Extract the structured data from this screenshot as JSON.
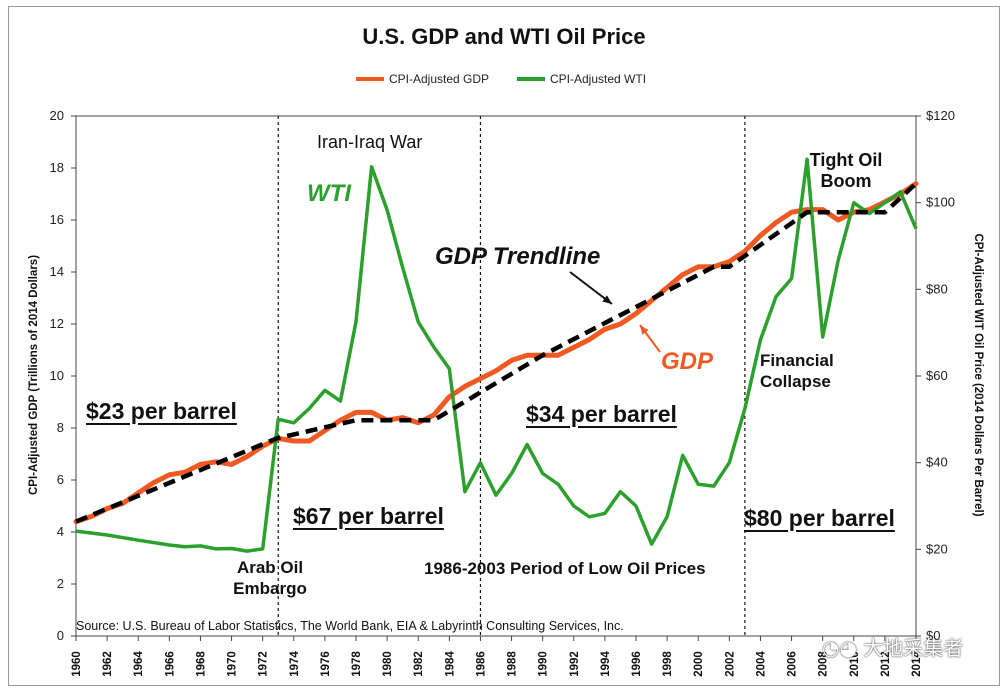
{
  "chart_data": {
    "type": "line",
    "title": "U.S. GDP and WTI Oil Price",
    "ylabel_left": "CPI-Adjusted GDP (Trillions of 2014 Dollars)",
    "ylabel_right": "CPI-Adjusted WIT Oil Price (2014 Dollars Per Barrel)",
    "ylim_left": [
      0,
      20
    ],
    "ylim_right": [
      0,
      120
    ],
    "y_ticks_left": [
      "0",
      "2",
      "4",
      "6",
      "8",
      "10",
      "12",
      "14",
      "16",
      "18",
      "20"
    ],
    "y_ticks_right": [
      "$0",
      "$20",
      "$40",
      "$60",
      "$80",
      "$100",
      "$120"
    ],
    "xlim": [
      1960,
      2014
    ],
    "x_ticks": [
      "1960",
      "1962",
      "1964",
      "1966",
      "1968",
      "1970",
      "1972",
      "1974",
      "1976",
      "1978",
      "1980",
      "1982",
      "1984",
      "1986",
      "1988",
      "1990",
      "1992",
      "1994",
      "1996",
      "1998",
      "2000",
      "2002",
      "2004",
      "2006",
      "2008",
      "2010",
      "2012",
      "2014"
    ],
    "legend_position": "top",
    "series": [
      {
        "name": "CPI-Adjusted GDP",
        "axis": "left",
        "color": "#f05a22",
        "x": [
          1960,
          1961,
          1962,
          1963,
          1964,
          1965,
          1966,
          1967,
          1968,
          1969,
          1970,
          1971,
          1972,
          1973,
          1974,
          1975,
          1976,
          1977,
          1978,
          1979,
          1980,
          1981,
          1982,
          1983,
          1984,
          1985,
          1986,
          1987,
          1988,
          1989,
          1990,
          1991,
          1992,
          1993,
          1994,
          1995,
          1996,
          1997,
          1998,
          1999,
          2000,
          2001,
          2002,
          2003,
          2004,
          2005,
          2006,
          2007,
          2008,
          2009,
          2010,
          2011,
          2012,
          2013,
          2014
        ],
        "y": [
          4.4,
          4.6,
          4.9,
          5.1,
          5.5,
          5.9,
          6.2,
          6.3,
          6.6,
          6.7,
          6.6,
          6.9,
          7.3,
          7.6,
          7.5,
          7.5,
          7.9,
          8.3,
          8.6,
          8.6,
          8.3,
          8.4,
          8.2,
          8.5,
          9.2,
          9.6,
          9.9,
          10.2,
          10.6,
          10.8,
          10.8,
          10.8,
          11.1,
          11.4,
          11.8,
          12.0,
          12.4,
          12.9,
          13.4,
          13.9,
          14.2,
          14.2,
          14.4,
          14.8,
          15.4,
          15.9,
          16.3,
          16.4,
          16.4,
          16.0,
          16.3,
          16.4,
          16.7,
          17.0,
          17.4
        ]
      },
      {
        "name": "CPI-Adjusted WTI",
        "axis": "right",
        "color": "#2ca02c",
        "x": [
          1960,
          1962,
          1964,
          1966,
          1967,
          1968,
          1969,
          1970,
          1971,
          1972,
          1973,
          1974,
          1975,
          1976,
          1977,
          1978,
          1979,
          1980,
          1981,
          1982,
          1983,
          1984,
          1985,
          1986,
          1987,
          1988,
          1989,
          1990,
          1991,
          1992,
          1993,
          1994,
          1995,
          1996,
          1997,
          1998,
          1999,
          2000,
          2001,
          2002,
          2003,
          2004,
          2005,
          2006,
          2007,
          2008,
          2009,
          2010,
          2011,
          2012,
          2013,
          2014
        ],
        "y": [
          24.2,
          23.3,
          22.1,
          21,
          20.6,
          20.8,
          20.1,
          20.2,
          19.6,
          20.1,
          50,
          49.2,
          52.5,
          56.7,
          54.2,
          72.5,
          108.3,
          98.3,
          85,
          72.5,
          66.7,
          61.7,
          33.3,
          40,
          32.5,
          37.5,
          44.2,
          37.5,
          35,
          30,
          27.5,
          28.3,
          33.3,
          30,
          21.2,
          27.5,
          41.7,
          35,
          34.6,
          40,
          52.5,
          68.3,
          78.3,
          82.5,
          110,
          69,
          86.7,
          100,
          97.5,
          100,
          102.5,
          94
        ]
      },
      {
        "name": "GDP Trendline",
        "axis": "left",
        "color": "#000000",
        "dashed": true,
        "x": [
          1960,
          1972.9,
          1978,
          1983,
          1990,
          2001,
          2002,
          2007,
          2008,
          2012,
          2014
        ],
        "y": [
          4.4,
          7.6,
          8.3,
          8.3,
          10.8,
          14.2,
          14.2,
          16.3,
          16.3,
          16.3,
          17.4
        ]
      }
    ],
    "vertical_lines_x": [
      1973,
      1986,
      2003
    ],
    "annotations": {
      "wti_label": "WTI",
      "iran_iraq": "Iran-Iraq War",
      "gdp_trendline": "GDP Trendline",
      "gdp_label": "GDP",
      "tight_oil_line1": "Tight Oil",
      "tight_oil_line2": "Boom",
      "financial_line1": "Financial",
      "financial_line2": "Collapse",
      "price_23": "$23 per barrel",
      "price_67": "$67 per barrel",
      "price_34": "$34 per barrel",
      "price_80": "$80 per barrel",
      "arab_line1": "Arab Oil",
      "arab_line2": "Embargo",
      "low_period": "1986-2003 Period of Low Oil Prices",
      "source": "Source: U.S. Bureau of Labor Statistics, The World Bank, EIA & Labyrinth Consulting Services, Inc."
    }
  },
  "watermark": "大地采集者",
  "watermark_icon": "wechat-icon"
}
